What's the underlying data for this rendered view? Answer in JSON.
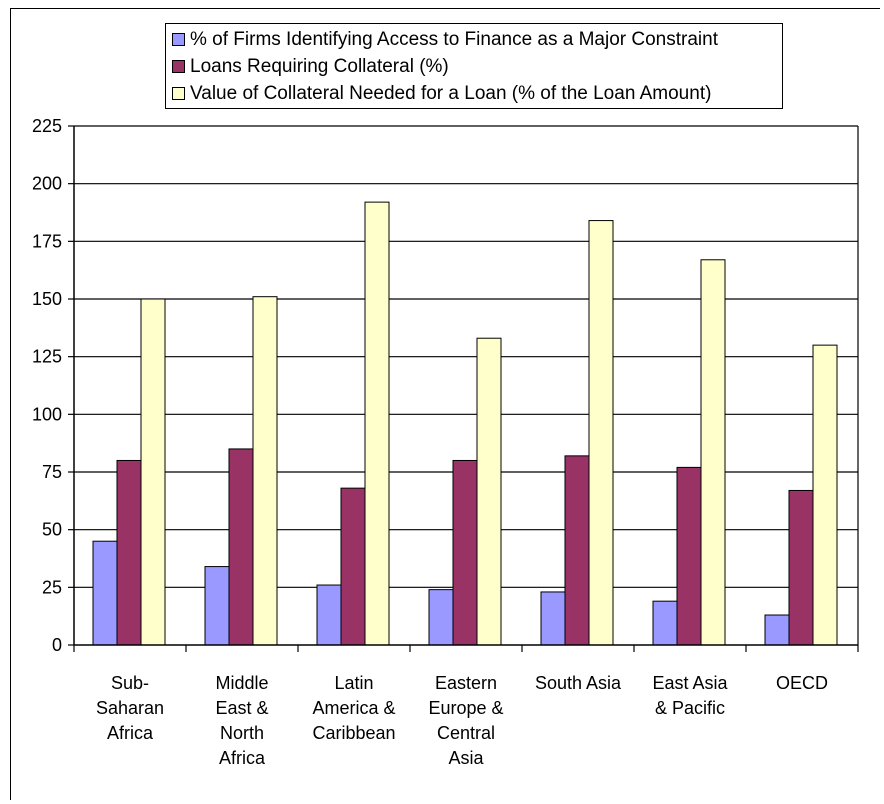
{
  "chart_data": {
    "type": "bar",
    "title": "",
    "xlabel": "",
    "ylabel": "",
    "ylim": [
      0,
      225
    ],
    "yticks": [
      0,
      25,
      50,
      75,
      100,
      125,
      150,
      175,
      200,
      225
    ],
    "grid": true,
    "legend_position": "top-center",
    "categories": [
      [
        "Sub-",
        "Saharan",
        "Africa"
      ],
      [
        "Middle",
        "East &",
        "North",
        "Africa"
      ],
      [
        "Latin",
        "America &",
        "Caribbean"
      ],
      [
        "Eastern",
        "Europe &",
        "Central",
        "Asia"
      ],
      [
        "South Asia"
      ],
      [
        "East Asia",
        "& Pacific"
      ],
      [
        "OECD"
      ]
    ],
    "series": [
      {
        "name": "% of Firms Identifying Access to Finance as a Major Constraint",
        "color": "#9999ff",
        "values": [
          45,
          34,
          26,
          24,
          23,
          19,
          13
        ]
      },
      {
        "name": "Loans Requiring Collateral (%)",
        "color": "#993366",
        "values": [
          80,
          85,
          68,
          80,
          82,
          77,
          67
        ]
      },
      {
        "name": "Value of Collateral Needed for a Loan (% of the Loan Amount)",
        "color": "#ffffcc",
        "values": [
          150,
          151,
          192,
          133,
          184,
          167,
          130
        ]
      }
    ]
  }
}
